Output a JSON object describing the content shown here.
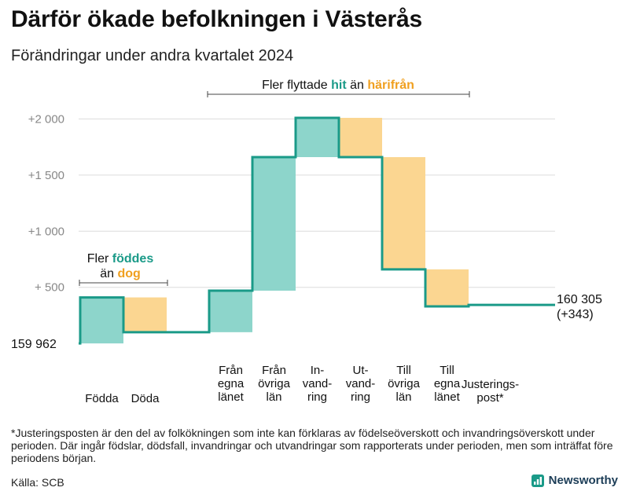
{
  "title": "Därför ökade befolkningen i Västerås",
  "subtitle": "Förändringar under andra kvartalet 2024",
  "colors": {
    "inflow": "#8dd5cb",
    "outflow": "#fbd691",
    "line": "#1a9a88",
    "accent_teal": "#1a9a88",
    "accent_orange": "#f0a020",
    "grid": "#dcdcdc"
  },
  "chart_data": {
    "type": "waterfall",
    "baseline_population": 159962,
    "end_population": 160305,
    "net_change": 343,
    "y_ticks": [
      {
        "value": 500,
        "label": "+   500"
      },
      {
        "value": 1000,
        "label": "+1   000"
      },
      {
        "value": 1500,
        "label": "+1   500"
      },
      {
        "value": 2000,
        "label": "+2   000"
      }
    ],
    "ylim": [
      -20,
      2080
    ],
    "baseline_label": "159   962",
    "end_label_1": "160 305",
    "end_label_2": "(+343)",
    "steps": [
      {
        "label": "Födda",
        "lines": [
          "Födda"
        ],
        "delta": 410,
        "kind": "in"
      },
      {
        "label": "Döda",
        "lines": [
          "Döda"
        ],
        "delta": -310,
        "kind": "out"
      },
      {
        "label": "Från egna länet",
        "lines": [
          "Från",
          "egna",
          "länet"
        ],
        "delta": 370,
        "kind": "in"
      },
      {
        "label": "Från övriga län",
        "lines": [
          "Från",
          "övriga",
          "län"
        ],
        "delta": 1190,
        "kind": "in"
      },
      {
        "label": "In-vandring",
        "lines": [
          "In-",
          "vand-",
          "ring"
        ],
        "delta": 350,
        "kind": "in"
      },
      {
        "label": "Ut-vandring",
        "lines": [
          "Ut-",
          "vand-",
          "ring"
        ],
        "delta": -350,
        "kind": "out"
      },
      {
        "label": "Till övriga län",
        "lines": [
          "Till",
          "övriga",
          "län"
        ],
        "delta": -1000,
        "kind": "out"
      },
      {
        "label": "Till egna länet",
        "lines": [
          "Till",
          "egna",
          "länet"
        ],
        "delta": -330,
        "kind": "out"
      },
      {
        "label": "Justeringspost*",
        "lines": [
          "Justerings-",
          "post*"
        ],
        "delta": 13,
        "kind": "adj"
      }
    ],
    "annotation_births": {
      "line1_pre": "Fler ",
      "line1_hl": "föddes",
      "line2_pre": "än ",
      "line2_hl": "dog"
    },
    "annotation_migration": {
      "pre": "Fler flyttade ",
      "hl1": "hit",
      "mid": "  än ",
      "hl2": "härifrån"
    }
  },
  "footnote": "*Justeringsposten är den del av folkökningen som inte kan förklaras av födelseöverskott och invandringsöverskott under perioden. Där ingår födslar, dödsfall, invandringar och utvandringar som rapporterats under perioden, men som inträffat före periodens början.",
  "source": "Källa: SCB",
  "brand": "Newsworthy"
}
